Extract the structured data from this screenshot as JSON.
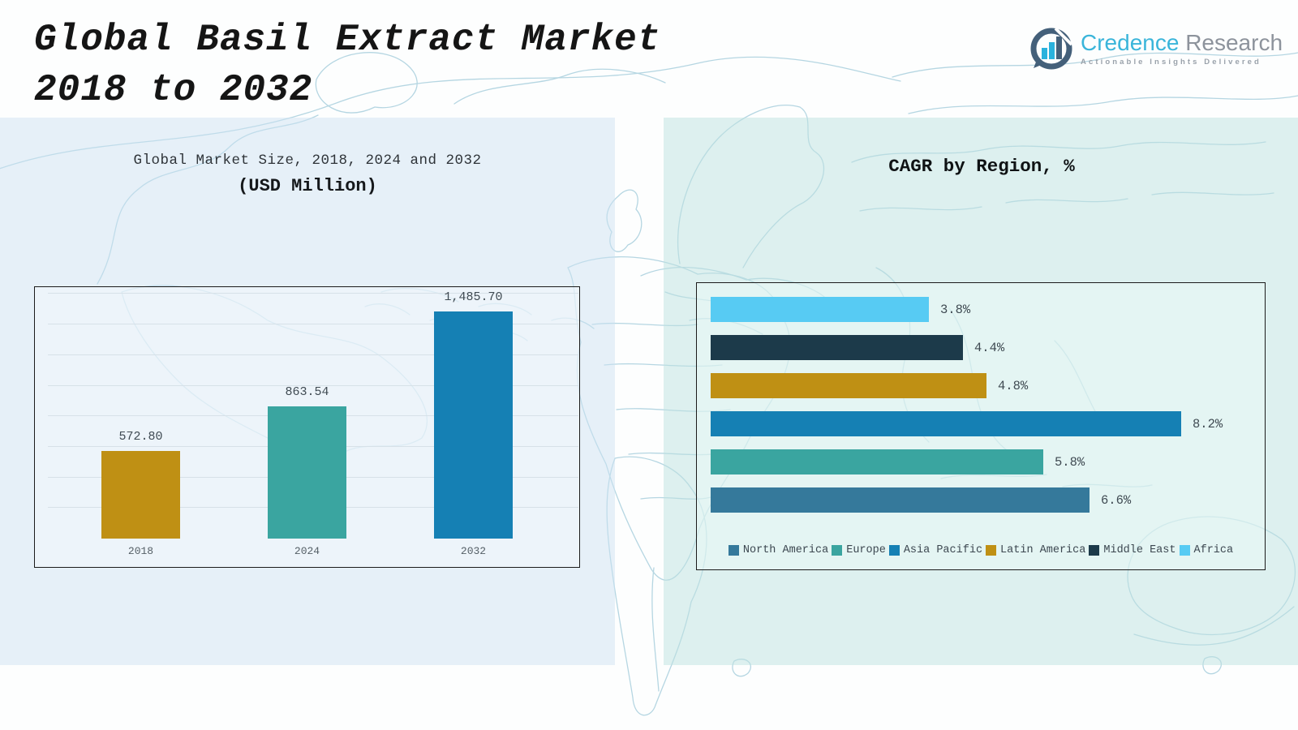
{
  "page": {
    "title_line1": "Global Basil Extract Market",
    "title_line2": "2018 to 2032"
  },
  "logo": {
    "brand_primary": "Credence",
    "brand_secondary": "Research",
    "tagline": "Actionable Insights Delivered",
    "icon": "bar-chart-speech-bubble-icon",
    "brand_primary_color": "#3ab5da",
    "brand_secondary_color": "#8d939c"
  },
  "market_chart": {
    "title": "Global Market Size, 2018, 2024 and 2032",
    "subtitle": "(USD Million)"
  },
  "cagr_chart": {
    "title": "CAGR by Region, %"
  },
  "colors": {
    "gold": "#bf9014",
    "teal": "#3aa5a0",
    "blue": "#1580b4",
    "steel_blue": "#35799b",
    "dark_navy": "#1c3a4a",
    "light_sky": "#57cbf3",
    "left_panel_bg": "#e9f2f9",
    "right_panel_bg": "#dff0ef",
    "map_line": "#b5d6e2"
  },
  "chart_data": [
    {
      "type": "bar",
      "title": "Global Market Size, 2018, 2024 and 2032",
      "subtitle": "(USD Million)",
      "xlabel": "",
      "ylabel": "USD Million",
      "categories": [
        "2018",
        "2024",
        "2032"
      ],
      "values": [
        572.8,
        863.54,
        1485.7
      ],
      "data_labels": [
        "572.80",
        "863.54",
        "1,485.70"
      ],
      "bar_colors": [
        "#bf9014",
        "#3aa5a0",
        "#1580b4"
      ],
      "ylim": [
        0,
        1650
      ],
      "grid": true,
      "grid_step": 200,
      "legend_position": "none"
    },
    {
      "type": "bar",
      "orientation": "horizontal",
      "title": "CAGR by Region, %",
      "xlabel": "CAGR %",
      "ylabel": "Region",
      "rows": [
        {
          "region": "Africa",
          "value": 3.8,
          "label": "3.8%",
          "color": "#57cbf3"
        },
        {
          "region": "Middle East",
          "value": 4.4,
          "label": "4.4%",
          "color": "#1c3a4a"
        },
        {
          "region": "Latin America",
          "value": 4.8,
          "label": "4.8%",
          "color": "#bf9014"
        },
        {
          "region": "Asia Pacific",
          "value": 8.2,
          "label": "8.2%",
          "color": "#1580b4"
        },
        {
          "region": "Europe",
          "value": 5.8,
          "label": "5.8%",
          "color": "#3aa5a0"
        },
        {
          "region": "North America",
          "value": 6.6,
          "label": "6.6%",
          "color": "#35799b"
        }
      ],
      "xlim": [
        0,
        8.7
      ],
      "grid": false,
      "legend_position": "bottom",
      "legend": [
        {
          "label": "North America",
          "color": "#35799b"
        },
        {
          "label": "Europe",
          "color": "#3aa5a0"
        },
        {
          "label": "Asia Pacific",
          "color": "#1580b4"
        },
        {
          "label": "Latin America",
          "color": "#bf9014"
        },
        {
          "label": "Middle East",
          "color": "#1c3a4a"
        },
        {
          "label": "Africa",
          "color": "#57cbf3"
        }
      ]
    }
  ]
}
